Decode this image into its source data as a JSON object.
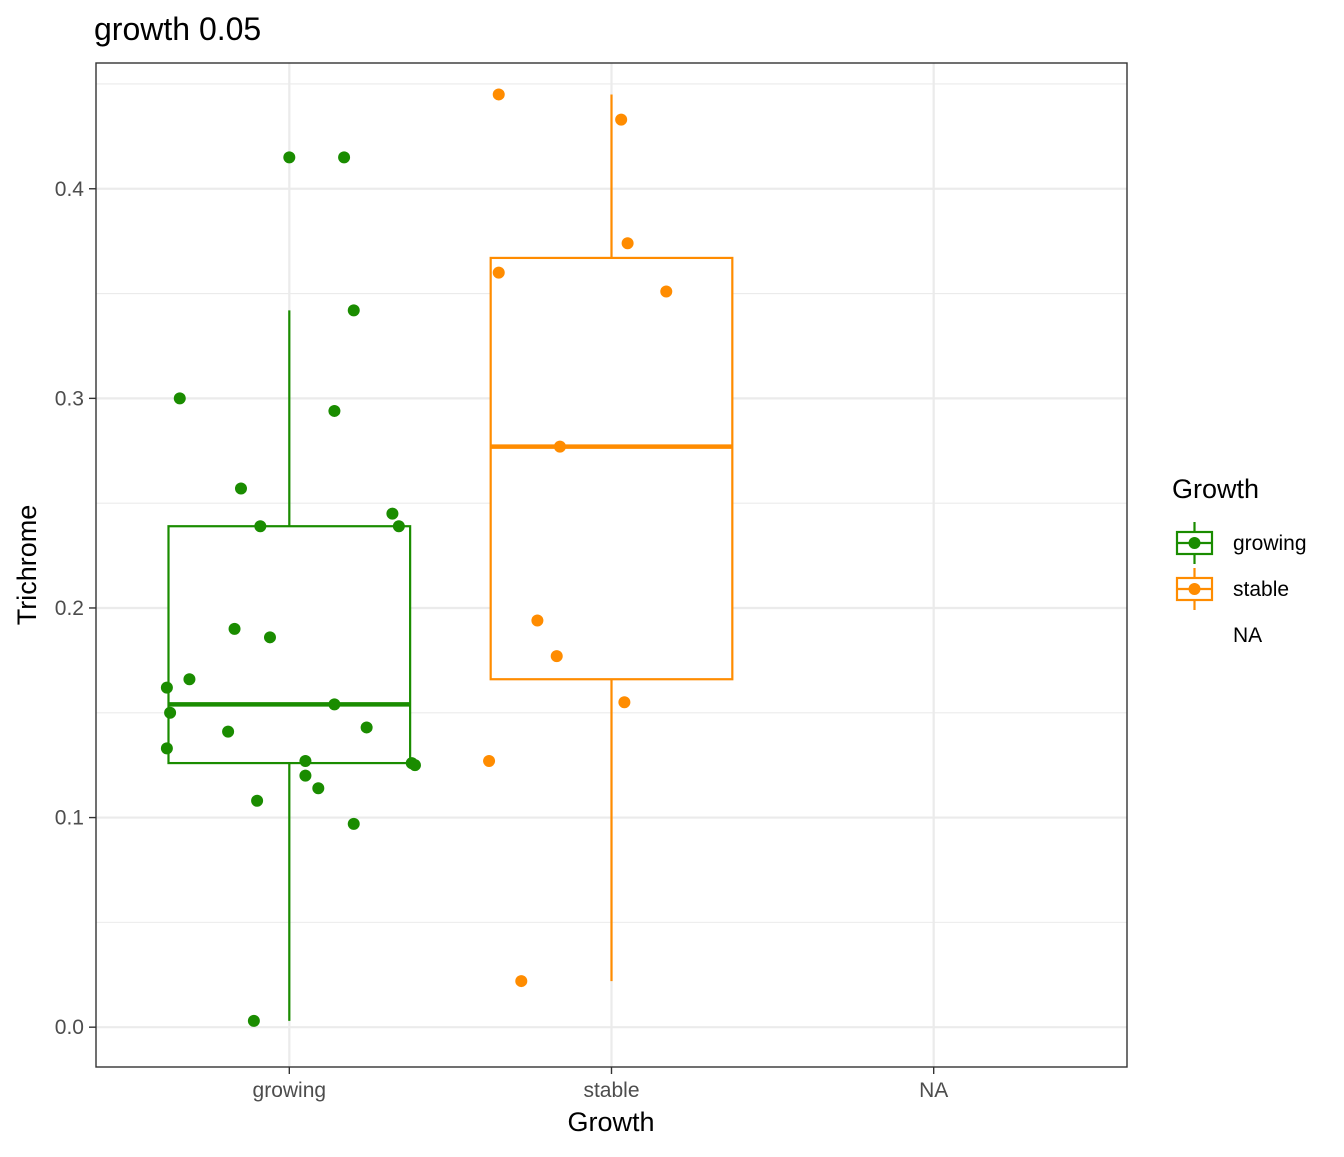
{
  "chart_data": {
    "type": "boxplot",
    "title": "growth 0.05",
    "xlabel": "Growth",
    "ylabel": "Trichrome",
    "categories": [
      "growing",
      "stable",
      "NA"
    ],
    "ylim": [
      -0.019,
      0.46
    ],
    "yticks": [
      0.0,
      0.1,
      0.2,
      0.3,
      0.4
    ],
    "ytick_labels": [
      "0.0",
      "0.1",
      "0.2",
      "0.3",
      "0.4"
    ],
    "grid": true,
    "legend": {
      "title": "Growth",
      "position": "right",
      "entries": [
        {
          "label": "growing",
          "color": "#1a8c00",
          "has_key": true
        },
        {
          "label": "stable",
          "color": "#ff8c00",
          "has_key": true
        },
        {
          "label": "NA",
          "color": "",
          "has_key": false
        }
      ]
    },
    "boxes": [
      {
        "category": "growing",
        "color": "#1a8c00",
        "whisker_low": 0.003,
        "q1": 0.126,
        "median": 0.154,
        "q3": 0.239,
        "whisker_high": 0.342
      },
      {
        "category": "stable",
        "color": "#ff8c00",
        "whisker_low": 0.022,
        "q1": 0.166,
        "median": 0.277,
        "q3": 0.367,
        "whisker_high": 0.445
      }
    ],
    "points": [
      {
        "category": "growing",
        "x": 1.0,
        "y": 0.415
      },
      {
        "category": "growing",
        "x": 1.17,
        "y": 0.415
      },
      {
        "category": "growing",
        "x": 1.2,
        "y": 0.342
      },
      {
        "category": "growing",
        "x": 0.66,
        "y": 0.3
      },
      {
        "category": "growing",
        "x": 1.14,
        "y": 0.294
      },
      {
        "category": "growing",
        "x": 0.85,
        "y": 0.257
      },
      {
        "category": "growing",
        "x": 1.32,
        "y": 0.245
      },
      {
        "category": "growing",
        "x": 0.91,
        "y": 0.239
      },
      {
        "category": "growing",
        "x": 1.34,
        "y": 0.239
      },
      {
        "category": "growing",
        "x": 0.83,
        "y": 0.19
      },
      {
        "category": "growing",
        "x": 0.94,
        "y": 0.186
      },
      {
        "category": "growing",
        "x": 0.69,
        "y": 0.166
      },
      {
        "category": "growing",
        "x": 0.62,
        "y": 0.162
      },
      {
        "category": "growing",
        "x": 1.14,
        "y": 0.154
      },
      {
        "category": "growing",
        "x": 0.63,
        "y": 0.15
      },
      {
        "category": "growing",
        "x": 1.24,
        "y": 0.143
      },
      {
        "category": "growing",
        "x": 0.81,
        "y": 0.141
      },
      {
        "category": "growing",
        "x": 0.62,
        "y": 0.133
      },
      {
        "category": "growing",
        "x": 1.05,
        "y": 0.127
      },
      {
        "category": "growing",
        "x": 1.38,
        "y": 0.126
      },
      {
        "category": "growing",
        "x": 1.39,
        "y": 0.125
      },
      {
        "category": "growing",
        "x": 1.05,
        "y": 0.12
      },
      {
        "category": "growing",
        "x": 1.09,
        "y": 0.114
      },
      {
        "category": "growing",
        "x": 0.9,
        "y": 0.108
      },
      {
        "category": "growing",
        "x": 1.2,
        "y": 0.097
      },
      {
        "category": "growing",
        "x": 0.89,
        "y": 0.003
      },
      {
        "category": "stable",
        "x": 1.65,
        "y": 0.445
      },
      {
        "category": "stable",
        "x": 2.03,
        "y": 0.433
      },
      {
        "category": "stable",
        "x": 2.05,
        "y": 0.374
      },
      {
        "category": "stable",
        "x": 1.65,
        "y": 0.36
      },
      {
        "category": "stable",
        "x": 2.17,
        "y": 0.351
      },
      {
        "category": "stable",
        "x": 1.84,
        "y": 0.277
      },
      {
        "category": "stable",
        "x": 1.77,
        "y": 0.194
      },
      {
        "category": "stable",
        "x": 1.83,
        "y": 0.177
      },
      {
        "category": "stable",
        "x": 2.04,
        "y": 0.155
      },
      {
        "category": "stable",
        "x": 1.62,
        "y": 0.127
      },
      {
        "category": "stable",
        "x": 1.72,
        "y": 0.022
      }
    ]
  }
}
